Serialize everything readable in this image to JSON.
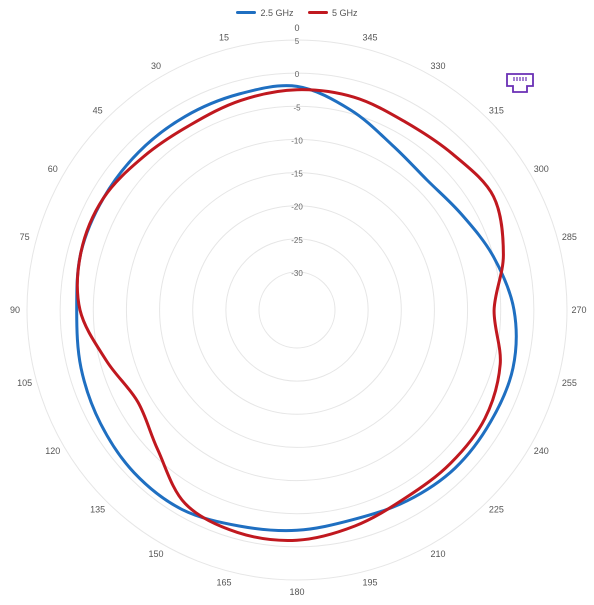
{
  "chart_data": {
    "type": "polar-line",
    "title": "",
    "legend": {
      "placement": "top-center"
    },
    "grid": true,
    "radial_axis": {
      "range": [
        -30,
        5
      ],
      "ticks": [
        {
          "value": 5,
          "label": "5"
        },
        {
          "value": 0,
          "label": "0"
        },
        {
          "value": -5,
          "label": "-5"
        },
        {
          "value": -10,
          "label": "-10"
        },
        {
          "value": -15,
          "label": "-15"
        },
        {
          "value": -20,
          "label": "-20"
        },
        {
          "value": -25,
          "label": "-25"
        },
        {
          "value": -30,
          "label": "-30"
        }
      ]
    },
    "angular_axis": {
      "direction": "counterclockwise",
      "zero_at": "top",
      "ticks": [
        {
          "value": 0,
          "label": "0"
        },
        {
          "value": 15,
          "label": "15"
        },
        {
          "value": 30,
          "label": "30"
        },
        {
          "value": 45,
          "label": "45"
        },
        {
          "value": 60,
          "label": "60"
        },
        {
          "value": 75,
          "label": "75"
        },
        {
          "value": 90,
          "label": "90"
        },
        {
          "value": 105,
          "label": "105"
        },
        {
          "value": 120,
          "label": "120"
        },
        {
          "value": 135,
          "label": "135"
        },
        {
          "value": 150,
          "label": "150"
        },
        {
          "value": 165,
          "label": "165"
        },
        {
          "value": 180,
          "label": "180"
        },
        {
          "value": 195,
          "label": "195"
        },
        {
          "value": 210,
          "label": "210"
        },
        {
          "value": 225,
          "label": "225"
        },
        {
          "value": 240,
          "label": "240"
        },
        {
          "value": 255,
          "label": "255"
        },
        {
          "value": 270,
          "label": "270"
        },
        {
          "value": 285,
          "label": "285"
        },
        {
          "value": 300,
          "label": "300"
        },
        {
          "value": 315,
          "label": "315"
        },
        {
          "value": 330,
          "label": "330"
        },
        {
          "value": 345,
          "label": "345"
        }
      ]
    },
    "angles": [
      0,
      15,
      30,
      45,
      60,
      75,
      90,
      105,
      120,
      135,
      150,
      165,
      180,
      195,
      210,
      225,
      240,
      255,
      270,
      285,
      300,
      315,
      330,
      345
    ],
    "series": [
      {
        "name": "2.5 GHz",
        "color": "#1f6fc1",
        "values": [
          -2,
          -2,
          -2,
          -2,
          -2,
          -2,
          -2.5,
          -2,
          -1.5,
          -1,
          -1,
          -2,
          -2.5,
          -3,
          -2.5,
          -2,
          -2,
          -2,
          -3,
          -5,
          -7,
          -8,
          -7,
          -4.5
        ]
      },
      {
        "name": "5 GHz",
        "color": "#c0181f",
        "values": [
          -2.5,
          -3,
          -3.5,
          -3,
          -2,
          -2,
          -3,
          -6,
          -8,
          -6,
          -2,
          -1,
          -1,
          -2,
          -3,
          -3,
          -3,
          -4,
          -6,
          -3.5,
          -1.5,
          -2.5,
          -3,
          -2.5
        ]
      }
    ]
  },
  "icons": {
    "corner": "ethernet-port-icon"
  }
}
